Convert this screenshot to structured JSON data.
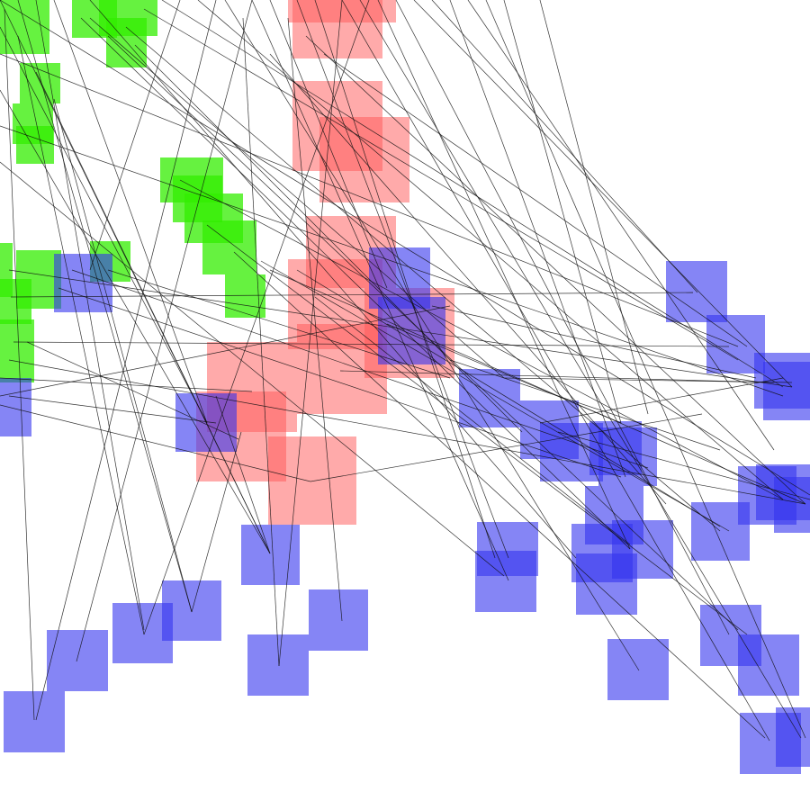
{
  "scene": {
    "description_free": true,
    "groups": {
      "green": {
        "color": "#33ee00",
        "opacity": 0.75
      },
      "red": {
        "color": "#ff5555",
        "opacity": 0.5
      },
      "blue": {
        "color": "#3333ee",
        "opacity": 0.6
      }
    },
    "line_color": "#111111",
    "background": "#ffffff"
  }
}
